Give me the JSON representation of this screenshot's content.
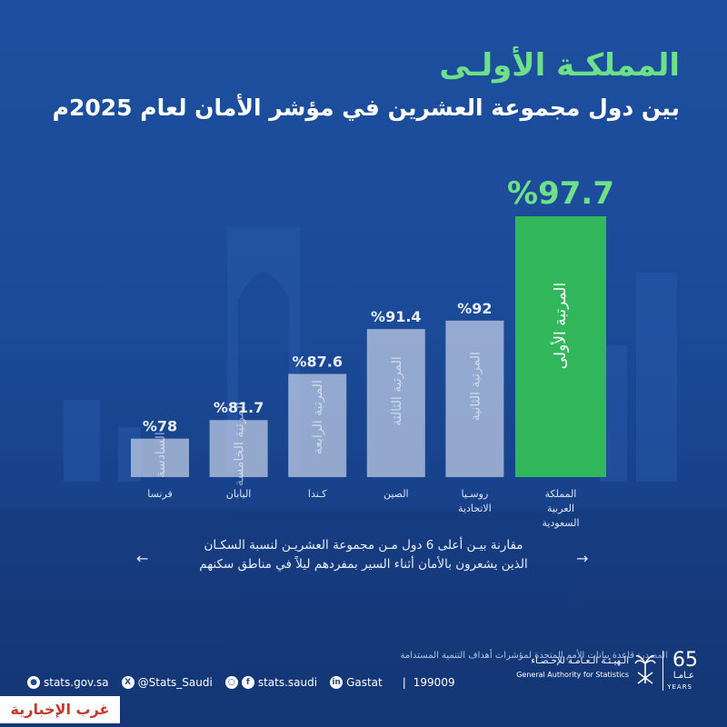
{
  "header": {
    "title": "المملكـة الأولـى",
    "subtitle": "بين دول مجموعة العشرين في مؤشر الأمان لعام 2025م"
  },
  "chart_data": {
    "type": "bar",
    "categories": [
      "فرنسا",
      "اليابان",
      "كـندا",
      "الصين",
      "روسـيا الاتحادية",
      "المملكة العربية السعودية"
    ],
    "values": [
      78,
      81.7,
      87.6,
      91.4,
      92,
      97.7
    ],
    "value_labels": [
      "%78",
      "%81.7",
      "%87.6",
      "%91.4",
      "%92",
      "%97.7"
    ],
    "rank_labels": [
      "السادسة",
      "المرتبة الخامسة",
      "المرتبة الرابعة",
      "المرتبة الثالثة",
      "المرتبة الثانية",
      "المرتبة الأولى"
    ],
    "category_lines": [
      [
        "فرنسا"
      ],
      [
        "اليابان"
      ],
      [
        "كـندا"
      ],
      [
        "الصين"
      ],
      [
        "روسـيا",
        "الاتحادية"
      ],
      [
        "المملكة",
        "العربية",
        "السعودية"
      ]
    ],
    "highlight_index": 5,
    "ylim": [
      0,
      100
    ],
    "colors": {
      "bar": "#c9d3ea",
      "highlight": "#33b75c",
      "label": "#e8eeff",
      "highlight_label": "#6fe08a"
    }
  },
  "caption": {
    "line1": "مقارنة بيـن أعلى 6 دول مـن مجموعة العشريـن لنسبة السكـان",
    "line2": "الذين يشعرون بالأمان أثناء السير بمفردهم ليلاً في مناطق سكنهم"
  },
  "source": {
    "label": "المصدر:",
    "text": "قاعدة بيانات الأمم المتحدة لمؤشرات أهداف التنمية المستدامة"
  },
  "logo": {
    "name_ar": "الـهيـئـة الـعـامـة للإحـصـاء",
    "name_en": "General Authority for Statistics",
    "years_number": "65",
    "years_ar": "عـامـا",
    "years_en": "YEARS"
  },
  "footer": {
    "website": "stats.gov.sa",
    "twitter": "@Stats_Saudi",
    "social": "stats.saudi",
    "linkedin": "Gastat",
    "phone": "199009"
  },
  "watermark": "غرب الإخبارية"
}
